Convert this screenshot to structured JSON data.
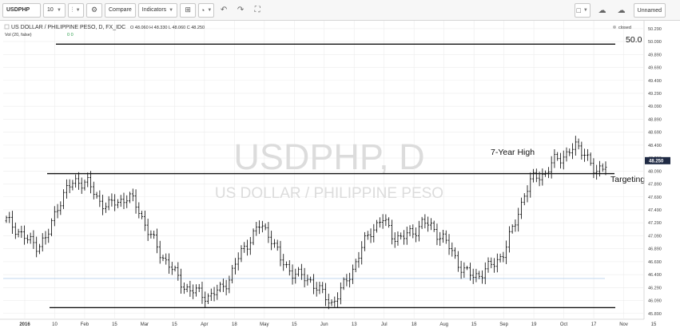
{
  "toolbar": {
    "symbol": "USDPHP",
    "interval": "10",
    "compare_label": "Compare",
    "indicators_label": "Indicators",
    "layout_name": "Unnamed"
  },
  "legend": {
    "title": "US DOLLAR / PHILIPPINE PESO, D, FX_IDC",
    "ohlc": "O 48.060 H 48.330 L 48.060 C 48.250",
    "volume": "Vol (20, false)",
    "volume_values": "0 0",
    "status": "closed"
  },
  "watermark": {
    "symbol": "USDPHP, D",
    "name": "US DOLLAR / PHILIPPINE PESO"
  },
  "annotations": {
    "level_50": "50.0",
    "seven_year_high": "7-Year High",
    "targeting": "Targeting"
  },
  "colors": {
    "bars": "#000000",
    "grid": "#ececec",
    "price_tag": "#1f2a44",
    "toolbar_bg": "#f7f7f7"
  },
  "chart_data": {
    "type": "line",
    "style": "ohlc-bars",
    "x_tick_labels": [
      "2016",
      "10",
      "Feb",
      "15",
      "Mar",
      "15",
      "Apr",
      "18",
      "May",
      "15",
      "Jun",
      "13",
      "Jul",
      "18",
      "Aug",
      "15",
      "Sep",
      "19",
      "Oct",
      "17",
      "Nov",
      "15"
    ],
    "y_tick_labels": [
      "50.290",
      "50.090",
      "49.890",
      "49.690",
      "49.490",
      "49.290",
      "49.090",
      "48.890",
      "48.690",
      "48.490",
      "48.290",
      "48.090",
      "47.890",
      "47.690",
      "47.490",
      "47.290",
      "47.090",
      "46.890",
      "46.690",
      "46.490",
      "46.290",
      "46.090",
      "45.890"
    ],
    "ylim": [
      45.85,
      50.35
    ],
    "last_price": "48.250",
    "horizontal_levels": [
      50.05,
      48.05,
      45.98
    ],
    "approx_series": [
      [
        0,
        47.32
      ],
      [
        4,
        47.2
      ],
      [
        8,
        47.02
      ],
      [
        12,
        46.95
      ],
      [
        16,
        47.05
      ],
      [
        20,
        47.55
      ],
      [
        24,
        47.82
      ],
      [
        28,
        47.95
      ],
      [
        32,
        47.9
      ],
      [
        36,
        47.65
      ],
      [
        40,
        47.55
      ],
      [
        44,
        47.62
      ],
      [
        48,
        47.7
      ],
      [
        52,
        47.5
      ],
      [
        56,
        47.15
      ],
      [
        60,
        46.85
      ],
      [
        64,
        46.65
      ],
      [
        68,
        46.4
      ],
      [
        72,
        46.25
      ],
      [
        76,
        46.2
      ],
      [
        80,
        46.15
      ],
      [
        84,
        46.25
      ],
      [
        88,
        46.45
      ],
      [
        92,
        46.8
      ],
      [
        96,
        47.05
      ],
      [
        100,
        47.25
      ],
      [
        104,
        47.1
      ],
      [
        108,
        46.7
      ],
      [
        112,
        46.55
      ],
      [
        116,
        46.45
      ],
      [
        120,
        46.4
      ],
      [
        124,
        46.2
      ],
      [
        128,
        46.05
      ],
      [
        132,
        46.25
      ],
      [
        136,
        46.55
      ],
      [
        140,
        46.9
      ],
      [
        144,
        47.2
      ],
      [
        148,
        47.35
      ],
      [
        152,
        47.1
      ],
      [
        156,
        47.05
      ],
      [
        160,
        47.15
      ],
      [
        164,
        47.3
      ],
      [
        168,
        47.2
      ],
      [
        172,
        47.05
      ],
      [
        176,
        46.8
      ],
      [
        180,
        46.55
      ],
      [
        184,
        46.45
      ],
      [
        188,
        46.55
      ],
      [
        192,
        46.65
      ],
      [
        196,
        46.85
      ],
      [
        200,
        47.25
      ],
      [
        204,
        47.75
      ],
      [
        208,
        48.0
      ],
      [
        212,
        48.05
      ],
      [
        216,
        48.25
      ],
      [
        220,
        48.35
      ],
      [
        224,
        48.45
      ],
      [
        228,
        48.4
      ],
      [
        232,
        48.0
      ],
      [
        236,
        48.25
      ]
    ]
  }
}
